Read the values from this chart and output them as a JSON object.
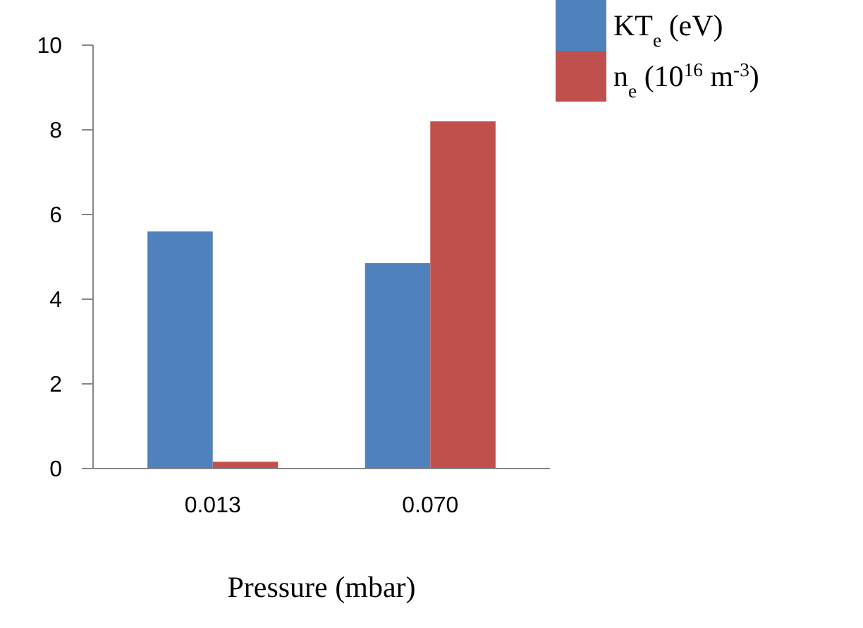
{
  "chart_data": {
    "type": "bar",
    "xlabel": "Pressure (mbar)",
    "categories": [
      "0.013",
      "0.070"
    ],
    "series": [
      {
        "name": "KT$_{e}$ (eV)",
        "color": "#4f81bd",
        "values": [
          5.6,
          4.85
        ]
      },
      {
        "name": "n$_{e}$ (10$^{16}$ m$^{-3}$)",
        "color": "#c0504d",
        "values": [
          0.16,
          8.2
        ]
      }
    ],
    "ylim": [
      0,
      10
    ],
    "yticks": [
      0,
      2,
      4,
      6,
      8,
      10
    ],
    "grid": false,
    "legend": "top right"
  }
}
